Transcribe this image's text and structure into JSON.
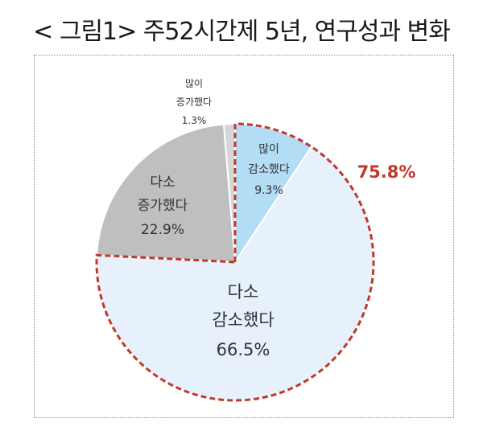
{
  "title": "< 그림1> 주52시간제 5년, 연구성과 변화",
  "chart_data": {
    "type": "pie",
    "title": "< 그림1> 주52시간제 5년, 연구성과 변화",
    "slices": [
      {
        "label_line1": "많이",
        "label_line2": "감소했다",
        "value": 9.3,
        "value_label": "9.3%",
        "color": "#b3dcf5"
      },
      {
        "label_line1": "다소",
        "label_line2": "감소했다",
        "value": 66.5,
        "value_label": "66.5%",
        "color": "#e6f1fb"
      },
      {
        "label_line1": "다소",
        "label_line2": "증가했다",
        "value": 22.9,
        "value_label": "22.9%",
        "color": "#bfbfbf"
      },
      {
        "label_line1": "많이",
        "label_line2": "증가했다",
        "value": 1.3,
        "value_label": "1.3%",
        "color": "#d6d6d6"
      }
    ],
    "highlight": {
      "label": "75.8%",
      "color": "#c0392b",
      "covers_slices": [
        0,
        1
      ]
    }
  }
}
